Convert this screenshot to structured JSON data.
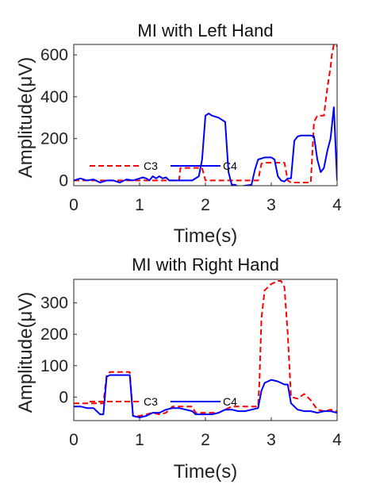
{
  "chart_data": [
    {
      "type": "line",
      "title": "MI with Left Hand",
      "xlabel": "Time(s)",
      "ylabel": "Amplitude(μV)",
      "xlim": [
        0,
        4
      ],
      "ylim": [
        -25,
        650
      ],
      "xticks": [
        0,
        1,
        2,
        3,
        4
      ],
      "yticks": [
        0,
        200,
        400,
        600
      ],
      "grid": false,
      "legend_placement": "center-left, inside axes",
      "series": [
        {
          "name": "C3",
          "color": "#ff0000",
          "style": "dashed",
          "x": [
            0,
            0.1,
            0.2,
            0.3,
            0.4,
            0.5,
            0.6,
            0.7,
            0.8,
            0.9,
            1.0,
            1.1,
            1.2,
            1.3,
            1.4,
            1.5,
            1.6,
            1.62,
            1.7,
            1.8,
            1.9,
            1.95,
            2.0,
            2.1,
            2.2,
            2.3,
            2.4,
            2.5,
            2.6,
            2.7,
            2.75,
            2.8,
            2.85,
            2.9,
            3.0,
            3.1,
            3.2,
            3.25,
            3.3,
            3.35,
            3.4,
            3.5,
            3.6,
            3.65,
            3.7,
            3.75,
            3.8,
            3.85,
            3.9,
            3.92,
            3.95,
            3.97,
            4.0
          ],
          "values": [
            0,
            0,
            0,
            0,
            0,
            0,
            0,
            0,
            0,
            0,
            0,
            0,
            0,
            0,
            0,
            0,
            0,
            60,
            60,
            60,
            60,
            60,
            0,
            0,
            0,
            0,
            0,
            0,
            0,
            0,
            0,
            0,
            80,
            85,
            85,
            85,
            85,
            0,
            -10,
            -10,
            -10,
            -10,
            -10,
            280,
            310,
            310,
            310,
            440,
            540,
            600,
            650,
            650,
            640
          ]
        },
        {
          "name": "C4",
          "color": "#0000ff",
          "style": "solid",
          "x": [
            0,
            0.1,
            0.2,
            0.3,
            0.4,
            0.5,
            0.6,
            0.7,
            0.8,
            0.9,
            1.0,
            1.05,
            1.1,
            1.15,
            1.2,
            1.25,
            1.3,
            1.35,
            1.4,
            1.45,
            1.5,
            1.6,
            1.7,
            1.8,
            1.9,
            1.95,
            2.0,
            2.05,
            2.1,
            2.2,
            2.3,
            2.35,
            2.4,
            2.45,
            2.5,
            2.6,
            2.7,
            2.75,
            2.8,
            2.9,
            3.0,
            3.05,
            3.1,
            3.15,
            3.2,
            3.25,
            3.3,
            3.35,
            3.4,
            3.45,
            3.5,
            3.6,
            3.65,
            3.7,
            3.75,
            3.8,
            3.85,
            3.9,
            3.95,
            4.0
          ],
          "values": [
            0,
            10,
            0,
            5,
            -10,
            0,
            0,
            -10,
            5,
            0,
            10,
            15,
            10,
            0,
            20,
            10,
            20,
            10,
            15,
            0,
            0,
            0,
            0,
            0,
            20,
            100,
            310,
            320,
            310,
            300,
            280,
            40,
            -20,
            -20,
            -30,
            -25,
            -20,
            50,
            100,
            110,
            110,
            100,
            20,
            0,
            -5,
            10,
            10,
            190,
            210,
            215,
            215,
            215,
            210,
            100,
            40,
            60,
            140,
            200,
            350,
            0
          ]
        }
      ]
    },
    {
      "type": "line",
      "title": "MI with Right Hand",
      "xlabel": "Time(s)",
      "ylabel": "Amplitude(μV)",
      "xlim": [
        0,
        4
      ],
      "ylim": [
        -75,
        375
      ],
      "xticks": [
        0,
        1,
        2,
        3,
        4
      ],
      "yticks": [
        0,
        100,
        200,
        300
      ],
      "grid": false,
      "legend_placement": "center-left, inside axes",
      "series": [
        {
          "name": "C3",
          "color": "#ff0000",
          "style": "dashed",
          "x": [
            0,
            0.1,
            0.2,
            0.3,
            0.4,
            0.45,
            0.5,
            0.55,
            0.6,
            0.7,
            0.8,
            0.85,
            0.9,
            1.0,
            1.1,
            1.2,
            1.3,
            1.4,
            1.5,
            1.55,
            1.6,
            1.7,
            1.8,
            1.85,
            1.9,
            2.0,
            2.1,
            2.2,
            2.3,
            2.4,
            2.5,
            2.6,
            2.7,
            2.8,
            2.82,
            2.85,
            2.9,
            3.0,
            3.1,
            3.15,
            3.2,
            3.25,
            3.3,
            3.4,
            3.5,
            3.6,
            3.7,
            3.8,
            3.9,
            4.0
          ],
          "values": [
            -20,
            -20,
            -20,
            -20,
            -20,
            -20,
            70,
            80,
            80,
            80,
            80,
            80,
            -60,
            -60,
            -55,
            -50,
            -55,
            -50,
            -30,
            -30,
            -30,
            -30,
            -30,
            -50,
            -50,
            -50,
            -50,
            -50,
            -40,
            -30,
            -30,
            -30,
            -30,
            -30,
            50,
            250,
            340,
            360,
            370,
            370,
            350,
            200,
            0,
            -5,
            10,
            -10,
            -40,
            -45,
            -40,
            -45
          ]
        },
        {
          "name": "C4",
          "color": "#0000ff",
          "style": "solid",
          "x": [
            0,
            0.1,
            0.2,
            0.3,
            0.4,
            0.45,
            0.5,
            0.55,
            0.6,
            0.7,
            0.8,
            0.85,
            0.9,
            1.0,
            1.1,
            1.2,
            1.3,
            1.4,
            1.5,
            1.55,
            1.6,
            1.7,
            1.8,
            1.85,
            1.9,
            2.0,
            2.1,
            2.2,
            2.3,
            2.4,
            2.5,
            2.6,
            2.7,
            2.8,
            2.85,
            2.9,
            3.0,
            3.1,
            3.2,
            3.25,
            3.3,
            3.4,
            3.5,
            3.6,
            3.7,
            3.8,
            3.9,
            4.0
          ],
          "values": [
            -30,
            -30,
            -35,
            -35,
            -55,
            -55,
            65,
            70,
            70,
            70,
            70,
            70,
            -60,
            -65,
            -60,
            -50,
            -50,
            -40,
            -35,
            -35,
            -35,
            -40,
            -45,
            -55,
            -55,
            -55,
            -55,
            -50,
            -40,
            -40,
            -45,
            -45,
            -40,
            -35,
            20,
            45,
            55,
            50,
            40,
            40,
            -20,
            -40,
            -45,
            -45,
            -50,
            -45,
            -45,
            -50
          ]
        }
      ]
    }
  ]
}
